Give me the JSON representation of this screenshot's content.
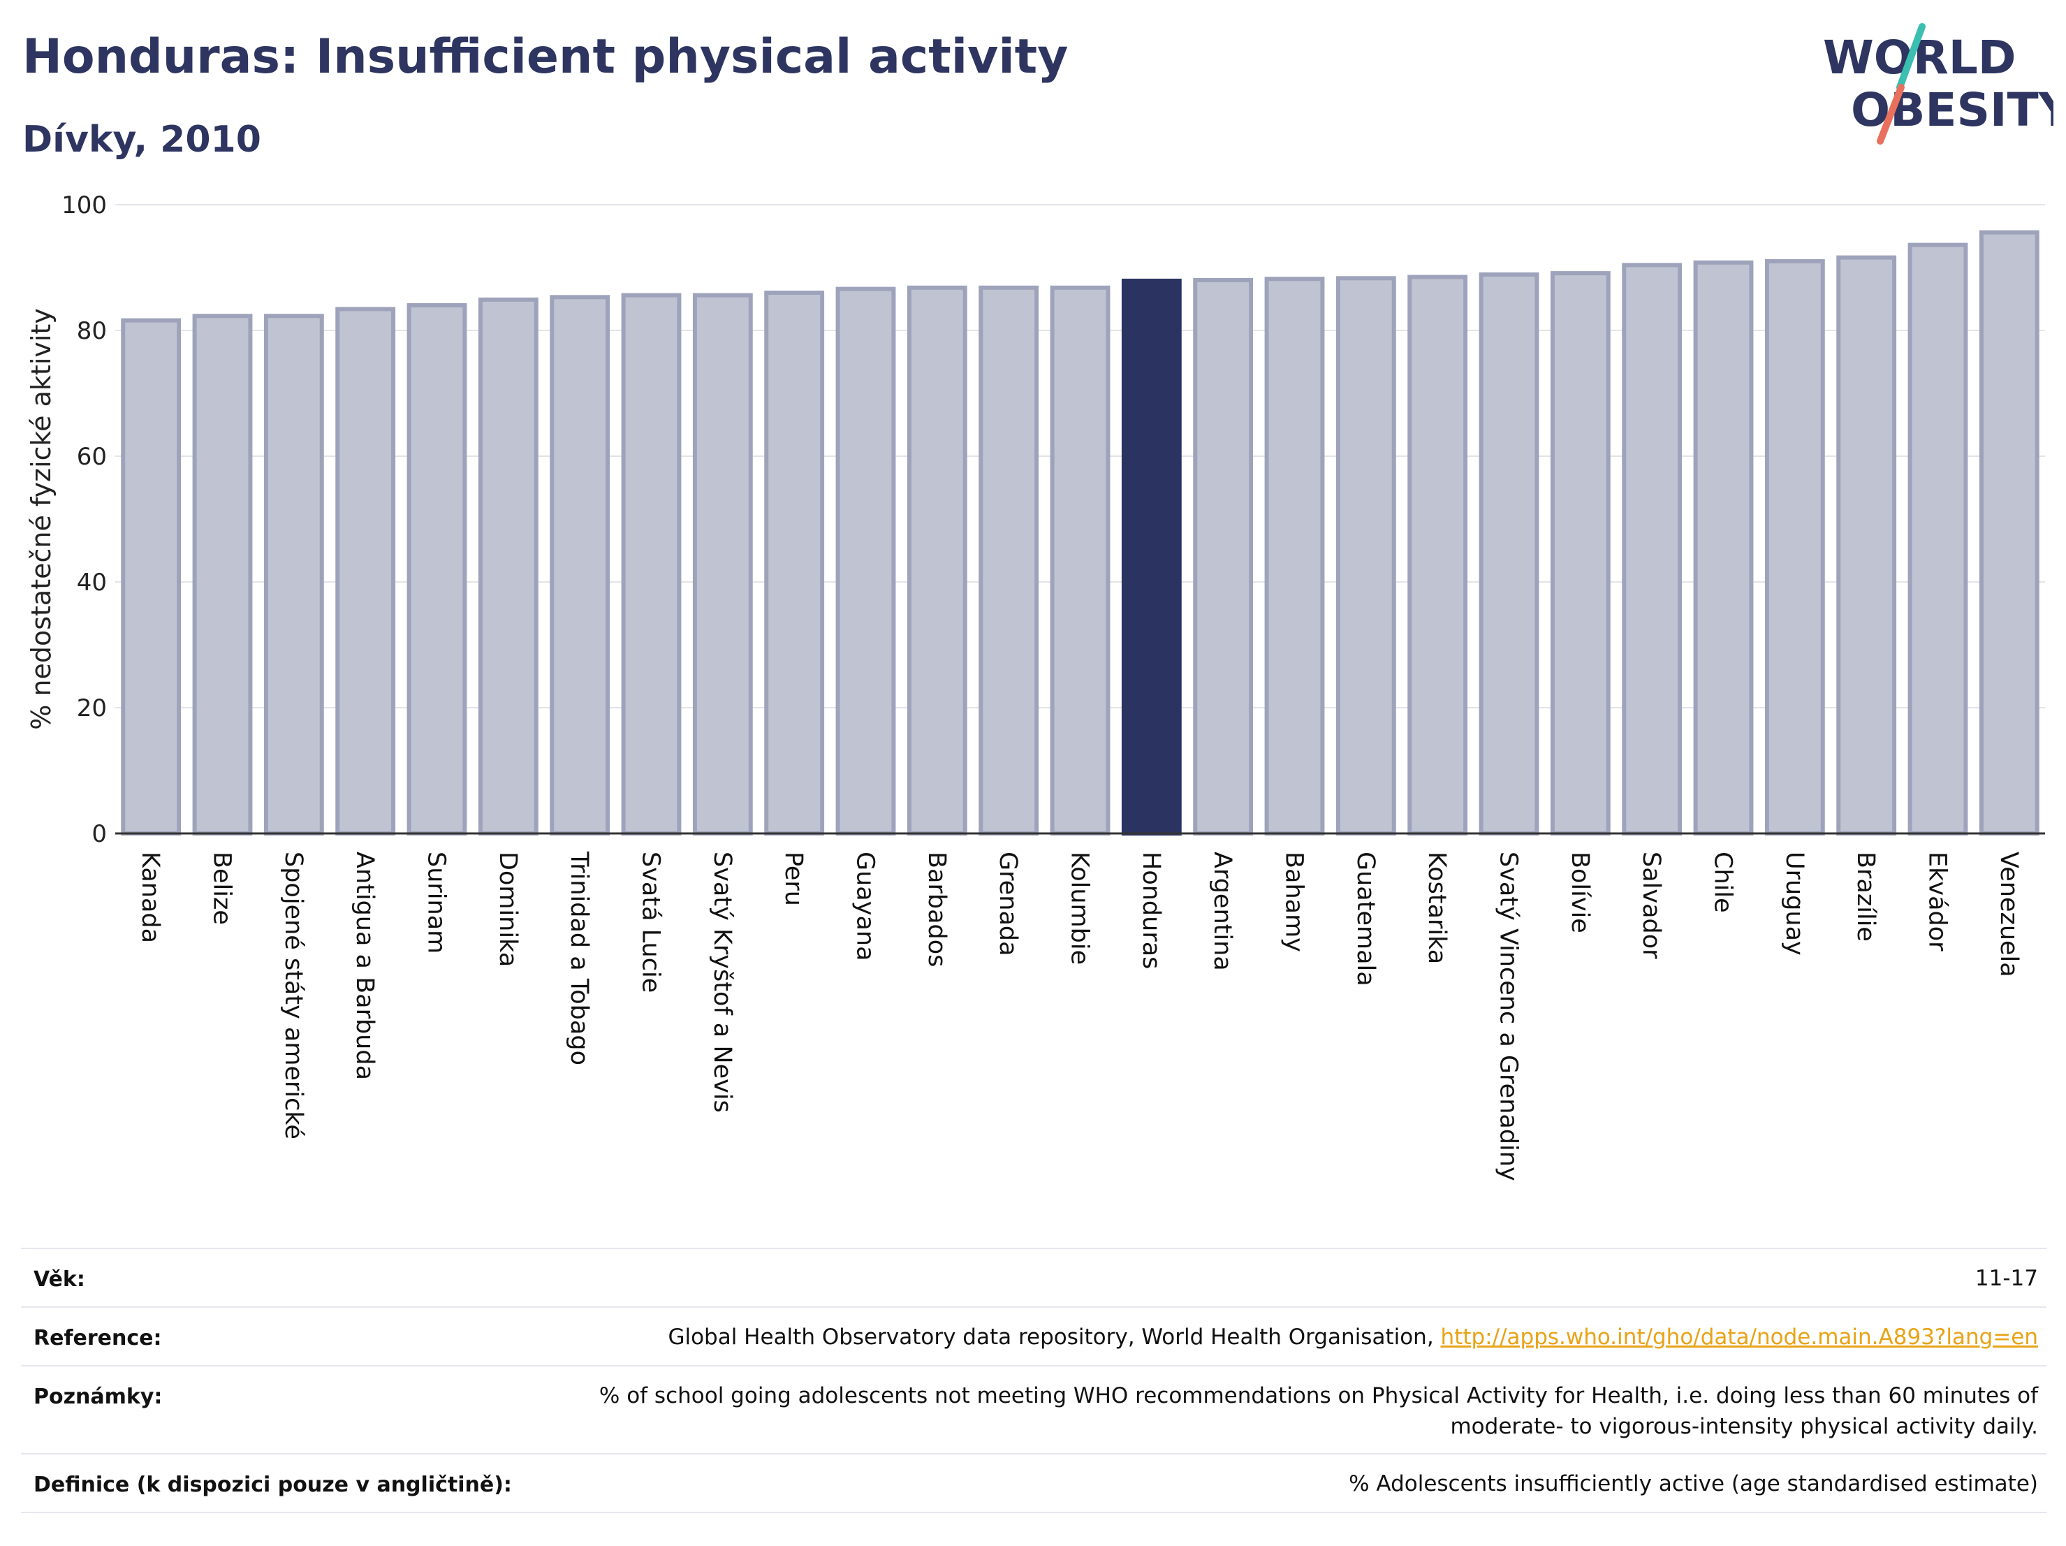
{
  "header": {
    "title": "Honduras: Insufficient physical activity",
    "subtitle": "Dívky, 2010"
  },
  "logo": {
    "line1": "WORLD",
    "line2": "OBESITY"
  },
  "chart_data": {
    "type": "bar",
    "ylabel": "% nedostatečné fyzické aktivity",
    "ylim": [
      0,
      100
    ],
    "yticks": [
      0,
      20,
      40,
      60,
      80,
      100
    ],
    "grid": true,
    "highlight": "Honduras",
    "colors": {
      "bar": "#c0c3d1",
      "bar_edge": "#9ea3bb",
      "highlight": "#2b3461",
      "grid": "#e3e3ea",
      "axis": "#333333"
    },
    "categories": [
      "Kanada",
      "Belize",
      "Spojené státy americké",
      "Antigua a Barbuda",
      "Surinam",
      "Dominika",
      "Trinidad a Tobago",
      "Svatá Lucie",
      "Svatý Kryštof a Nevis",
      "Peru",
      "Guayana",
      "Barbados",
      "Grenada",
      "Kolumbie",
      "Honduras",
      "Argentina",
      "Bahamy",
      "Guatemala",
      "Kostarika",
      "Svatý Vincenc a Grenadiny",
      "Bolívie",
      "Salvador",
      "Chile",
      "Uruguay",
      "Brazílie",
      "Ekvádor",
      "Venezuela"
    ],
    "values": [
      81.6,
      82.3,
      82.3,
      83.4,
      84.0,
      84.9,
      85.3,
      85.6,
      85.6,
      86.0,
      86.6,
      86.8,
      86.8,
      86.8,
      87.9,
      88.0,
      88.2,
      88.3,
      88.5,
      88.9,
      89.1,
      90.4,
      90.8,
      91.0,
      91.6,
      93.6,
      95.6
    ]
  },
  "meta": {
    "age_label": "Věk:",
    "age_value": "11-17",
    "reference_label": "Reference:",
    "reference_text": "Global Health Observatory data repository, World Health Organisation, ",
    "reference_link": "http://apps.who.int/gho/data/node.main.A893?lang=en",
    "notes_label": "Poznámky:",
    "notes_line1": "% of school going adolescents not meeting WHO recommendations on Physical Activity for Health, i.e. doing less than 60 minutes of",
    "notes_line2": "moderate- to vigorous-intensity physical activity daily.",
    "definition_label": "Definice (k dispozici pouze v angličtině):",
    "definition_value": "% Adolescents insufficiently active (age standardised estimate)"
  }
}
